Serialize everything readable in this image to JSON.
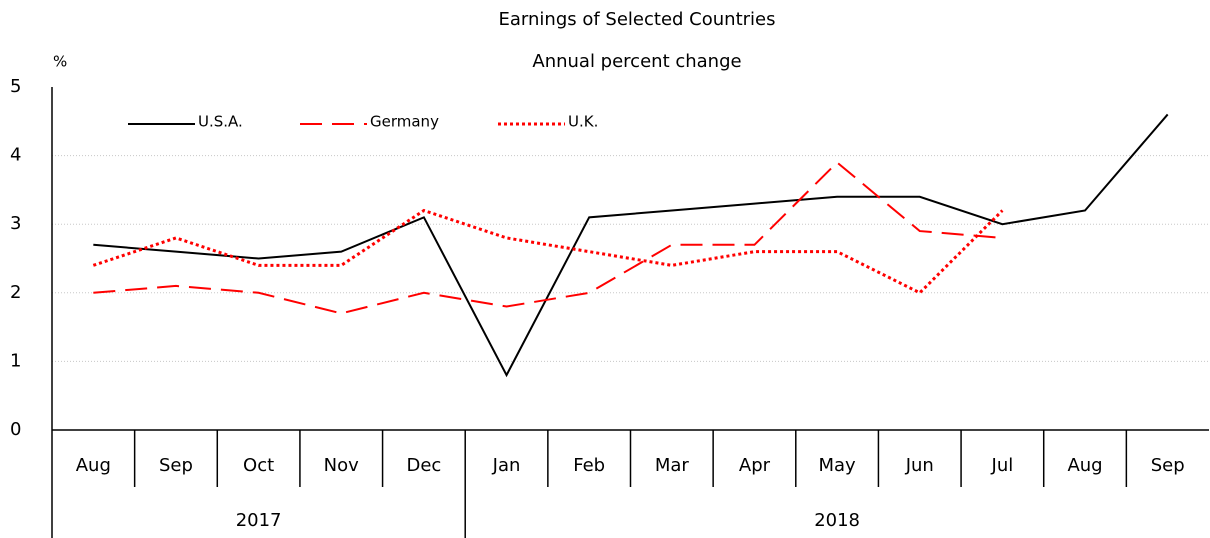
{
  "chart_data": {
    "type": "line",
    "title": "Earnings of Selected Countries",
    "subtitle": "Annual percent change",
    "y_unit": "%",
    "groups": [
      {
        "label": "2017",
        "categories": [
          "Aug",
          "Sep",
          "Oct",
          "Nov",
          "Dec"
        ]
      },
      {
        "label": "2018",
        "categories": [
          "Jan",
          "Feb",
          "Mar",
          "Apr",
          "May",
          "Jun",
          "Jul",
          "Aug",
          "Sep"
        ]
      }
    ],
    "series": [
      {
        "name": "U.S.A.",
        "color": "#000000",
        "dash": "solid",
        "values": [
          2.7,
          2.6,
          2.5,
          2.6,
          3.1,
          0.8,
          3.1,
          3.2,
          3.3,
          3.4,
          3.4,
          3.0,
          3.2,
          4.6
        ]
      },
      {
        "name": "Germany",
        "color": "#ff0000",
        "dash": "dashed",
        "values": [
          2.0,
          2.1,
          2.0,
          1.7,
          2.0,
          1.8,
          2.0,
          2.7,
          2.7,
          3.9,
          2.9,
          2.8,
          null,
          null
        ]
      },
      {
        "name": "U.K.",
        "color": "#ff0000",
        "dash": "dotted",
        "values": [
          2.4,
          2.8,
          2.4,
          2.4,
          3.2,
          2.8,
          2.6,
          2.4,
          2.6,
          2.6,
          2.0,
          3.2,
          null,
          null
        ]
      }
    ],
    "ylim": [
      0,
      5
    ],
    "yticks": [
      0,
      1,
      2,
      3,
      4,
      5
    ],
    "grid": true,
    "legend": "top-left"
  }
}
